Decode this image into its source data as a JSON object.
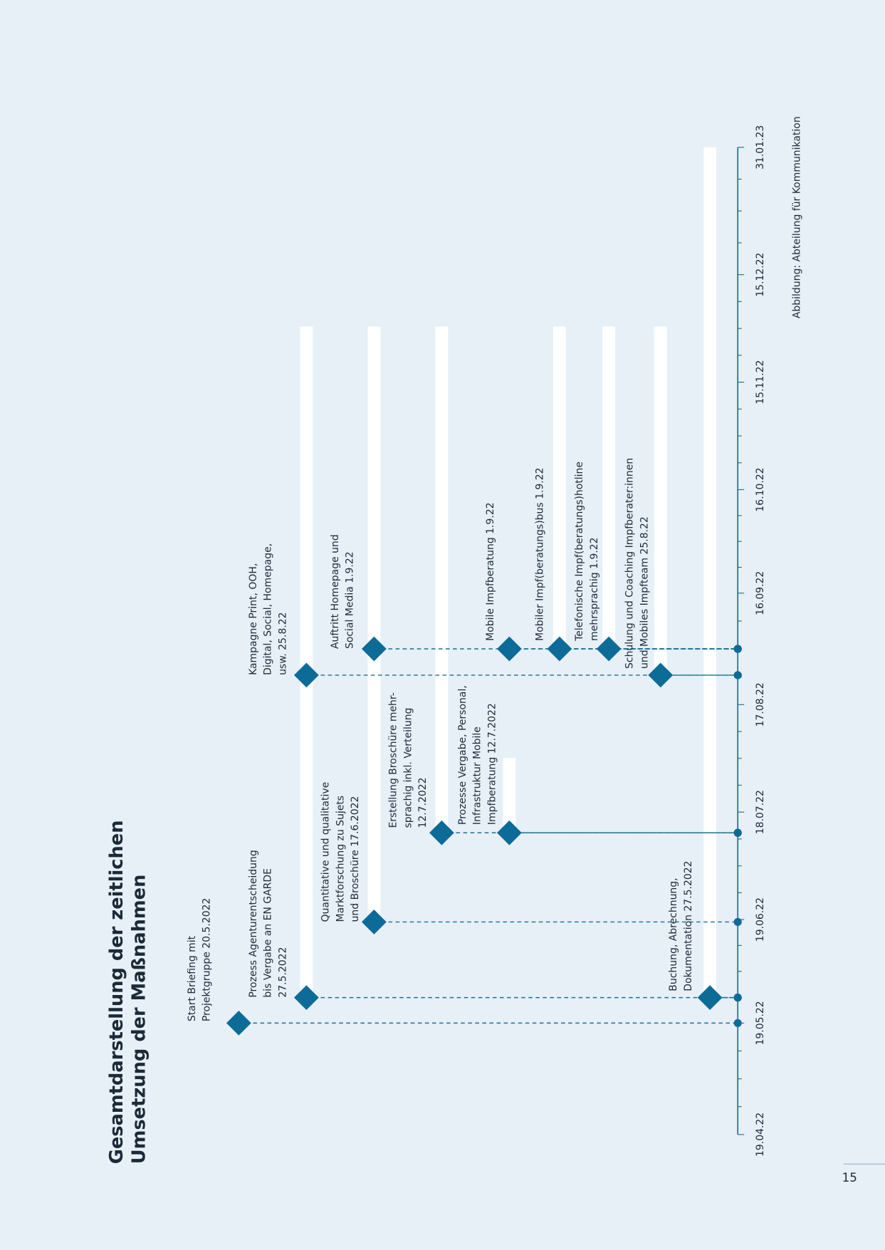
{
  "title": [
    "Gesamtdarstellung der zeitlichen",
    "Umsetzung der Maßnahmen"
  ],
  "axis_labels": [
    "19.04.22",
    "19.05.22",
    "19.06.22",
    "18.07.22",
    "17.08.22",
    "16.09.22",
    "16.10.22",
    "15.11.22",
    "15.12.22",
    "31.01.23"
  ],
  "milestones": [
    {
      "label": [
        "Start Briefing mit",
        "Projektgruppe 20.5.2022"
      ]
    },
    {
      "label": [
        "Prozess Agenturentscheidung",
        "bis Vergabe an EN GARDE",
        "27.5.2022"
      ]
    },
    {
      "label": [
        "Kampagne Print, OOH,",
        "Digital, Social, Homepage,",
        "usw. 25.8.22"
      ]
    },
    {
      "label": [
        "Quantitative und qualitative",
        "Marktforschung zu Sujets",
        "und Broschüre 17.6.2022"
      ]
    },
    {
      "label": [
        "Auftritt Homepage und",
        "Social Media 1.9.22"
      ]
    },
    {
      "label": [
        "Erstellung Broschüre mehr-",
        "sprachig inkl. Verteilung",
        "12.7.2022"
      ]
    },
    {
      "label": [
        "Prozesse Vergabe, Personal,",
        "Infrastruktur Mobile",
        "Impfberatung 12.7.2022"
      ]
    },
    {
      "label": [
        "Mobile Impfberatung 1.9.22"
      ]
    },
    {
      "label": [
        "Mobiler Impf(beratungs)bus 1.9.22"
      ]
    },
    {
      "label": [
        "Telefonische Impf(beratungs)hotline",
        "mehrsprachig 1.9.22"
      ]
    },
    {
      "label": [
        "Schulung und Coaching Impfberater:innen",
        "und Mobiles Impfteam 25.8.22"
      ]
    },
    {
      "label": [
        "Buchung, Abrechnung,",
        "Dokumentation 27.5.2022"
      ]
    }
  ],
  "source": "Abbildung: Abteilung für Kommunikation",
  "page_number": "15"
}
